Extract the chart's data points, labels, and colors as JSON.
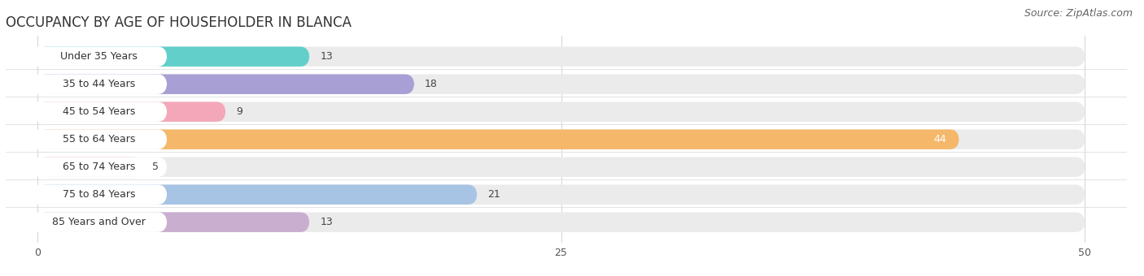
{
  "title": "OCCUPANCY BY AGE OF HOUSEHOLDER IN BLANCA",
  "source": "Source: ZipAtlas.com",
  "categories": [
    "Under 35 Years",
    "35 to 44 Years",
    "45 to 54 Years",
    "55 to 64 Years",
    "65 to 74 Years",
    "75 to 84 Years",
    "85 Years and Over"
  ],
  "values": [
    13,
    18,
    9,
    44,
    5,
    21,
    13
  ],
  "bar_colors": [
    "#62CFCA",
    "#A89FD4",
    "#F4A7B9",
    "#F5B86A",
    "#F4A0A0",
    "#A8C4E4",
    "#C9AECF"
  ],
  "xlim_min": 0,
  "xlim_max": 50,
  "xticks": [
    0,
    25,
    50
  ],
  "bg_color": "#ffffff",
  "bar_bg_color": "#ebebeb",
  "grid_color": "#d8d8d8",
  "title_fontsize": 12,
  "source_fontsize": 9,
  "label_fontsize": 9,
  "value_fontsize": 9,
  "bar_height": 0.72,
  "fig_width": 14.06,
  "fig_height": 3.4
}
